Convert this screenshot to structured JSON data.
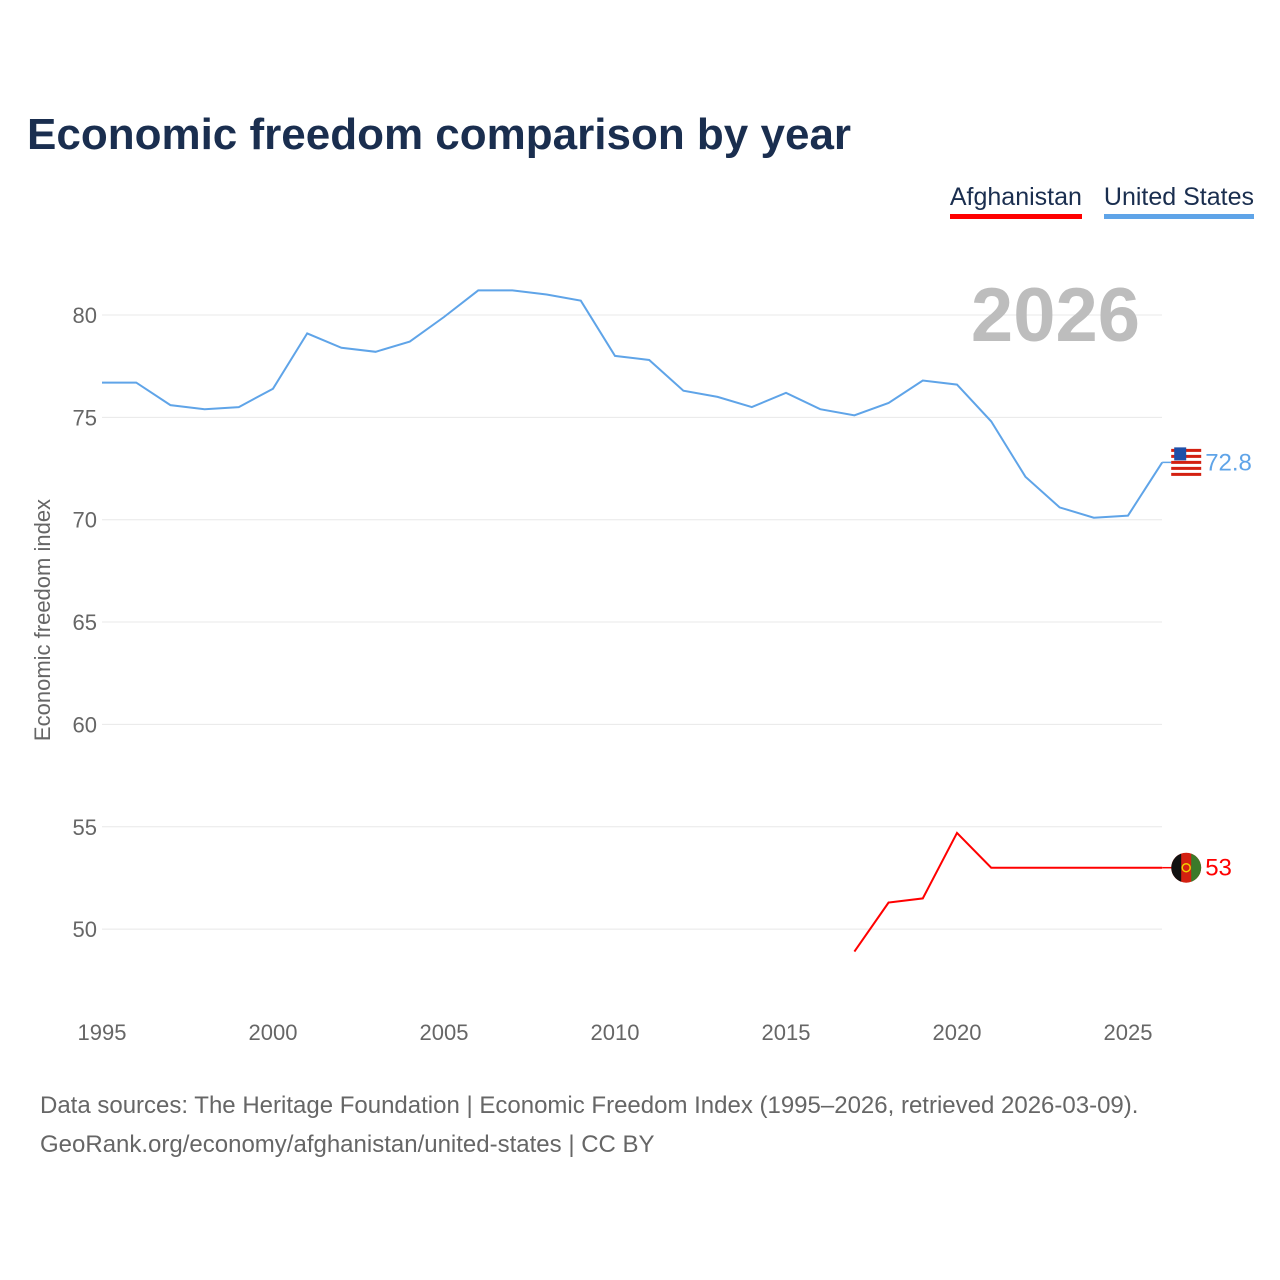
{
  "title": "Economic freedom comparison by year",
  "footer": {
    "line1": "Data sources: The Heritage Foundation | Economic Freedom Index (1995–2026, retrieved 2026-03-09).",
    "line2": "GeoRank.org/economy/afghanistan/united-states | CC BY"
  },
  "chart_data": {
    "type": "line",
    "title": "Economic freedom comparison by year",
    "xlabel": "",
    "ylabel": "Economic freedom index",
    "year_label": "2026",
    "xlim": [
      1995,
      2026
    ],
    "ylim": [
      46,
      83
    ],
    "xticks": [
      "1995",
      "2000",
      "2005",
      "2010",
      "2015",
      "2020",
      "2025"
    ],
    "yticks": [
      "50",
      "55",
      "60",
      "65",
      "70",
      "75",
      "80"
    ],
    "legend": "top-right",
    "grid": true,
    "series": [
      {
        "name": "Afghanistan",
        "color": "#ff0000",
        "end_label": "53",
        "flag": "afghanistan-flag",
        "x": [
          2017,
          2018,
          2019,
          2020,
          2021,
          2022,
          2023,
          2024,
          2025,
          2026
        ],
        "values": [
          48.9,
          51.3,
          51.5,
          54.7,
          53.0,
          53.0,
          53.0,
          53.0,
          53.0,
          53.0
        ]
      },
      {
        "name": "United States",
        "color": "#5fa4e8",
        "end_label": "72.8",
        "flag": "united-states-flag",
        "x": [
          1995,
          1996,
          1997,
          1998,
          1999,
          2000,
          2001,
          2002,
          2003,
          2004,
          2005,
          2006,
          2007,
          2008,
          2009,
          2010,
          2011,
          2012,
          2013,
          2014,
          2015,
          2016,
          2017,
          2018,
          2019,
          2020,
          2021,
          2022,
          2023,
          2024,
          2025,
          2026
        ],
        "values": [
          76.7,
          76.7,
          75.6,
          75.4,
          75.5,
          76.4,
          79.1,
          78.4,
          78.2,
          78.7,
          79.9,
          81.2,
          81.2,
          81.0,
          80.7,
          78.0,
          77.8,
          76.3,
          76.0,
          75.5,
          76.2,
          75.4,
          75.1,
          75.7,
          76.8,
          76.6,
          74.8,
          72.1,
          70.6,
          70.1,
          70.2,
          72.8
        ]
      }
    ]
  }
}
